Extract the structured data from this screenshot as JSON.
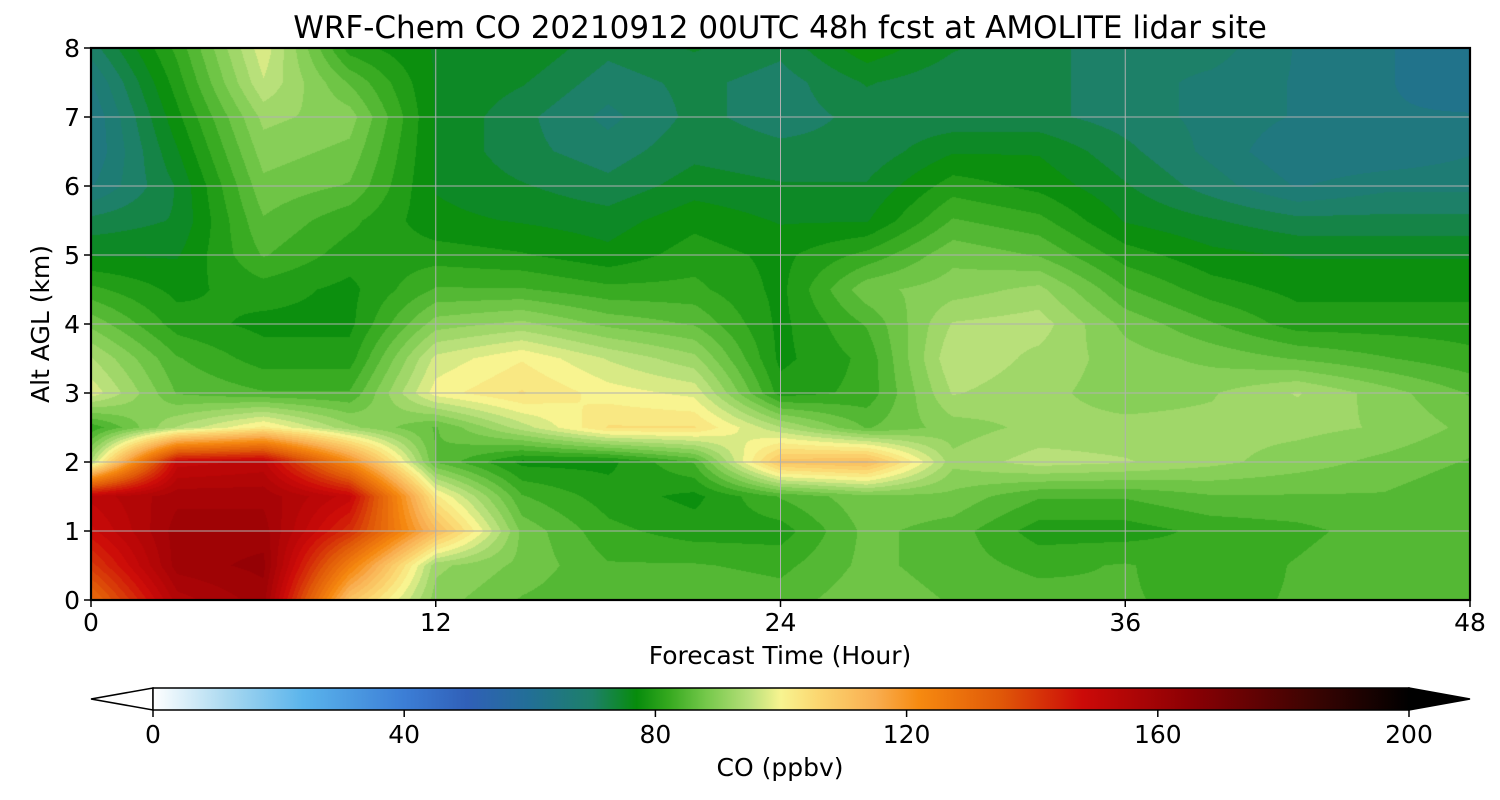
{
  "chart_data": {
    "type": "heatmap",
    "title": "WRF-Chem CO  20210912 00UTC 48h fcst at AMOLITE lidar site",
    "xlabel": "Forecast Time (Hour)",
    "ylabel": "Alt AGL (km)",
    "xlim": [
      0,
      48
    ],
    "ylim": [
      0,
      8
    ],
    "xticks": [
      0,
      12,
      24,
      36,
      48
    ],
    "yticks": [
      0,
      1,
      2,
      3,
      4,
      5,
      6,
      7,
      8
    ],
    "grid": true,
    "colorbar": {
      "label": "CO  (ppbv)",
      "range": [
        0,
        200
      ],
      "ticks": [
        0,
        40,
        80,
        120,
        160,
        200
      ],
      "extend": "both",
      "orientation": "horizontal",
      "stops": [
        {
          "value": 0,
          "color": "#ffffff"
        },
        {
          "value": 12,
          "color": "#a8d8f0"
        },
        {
          "value": 24,
          "color": "#5ab4ec"
        },
        {
          "value": 40,
          "color": "#3c7ed6"
        },
        {
          "value": 50,
          "color": "#3060b8"
        },
        {
          "value": 60,
          "color": "#226f96"
        },
        {
          "value": 70,
          "color": "#1d8068"
        },
        {
          "value": 77,
          "color": "#078c0c"
        },
        {
          "value": 82,
          "color": "#34a81e"
        },
        {
          "value": 88,
          "color": "#74c84a"
        },
        {
          "value": 95,
          "color": "#b8e07a"
        },
        {
          "value": 100,
          "color": "#f8f490"
        },
        {
          "value": 106,
          "color": "#fbd670"
        },
        {
          "value": 115,
          "color": "#f9ae50"
        },
        {
          "value": 122,
          "color": "#f68a10"
        },
        {
          "value": 135,
          "color": "#e05808"
        },
        {
          "value": 148,
          "color": "#cc0a08"
        },
        {
          "value": 165,
          "color": "#8c0004"
        },
        {
          "value": 185,
          "color": "#3a0402"
        },
        {
          "value": 200,
          "color": "#000000"
        }
      ]
    },
    "field_note_units": "ppbv",
    "time": [
      0,
      3,
      6,
      9,
      12,
      15,
      18,
      21,
      24,
      27,
      30,
      33,
      36,
      39,
      42,
      45,
      48
    ],
    "altitude": [
      0,
      0.5,
      1,
      1.5,
      2,
      2.5,
      3,
      3.5,
      4,
      4.5,
      5,
      5.5,
      6,
      6.5,
      7,
      7.5,
      8
    ],
    "values": [
      [
        130,
        155,
        160,
        110,
        90,
        86,
        84,
        86,
        85,
        88,
        86,
        85,
        84,
        83,
        84,
        86,
        84
      ],
      [
        140,
        160,
        162,
        125,
        92,
        88,
        84,
        84,
        83,
        87,
        85,
        83,
        84,
        82,
        84,
        86,
        84
      ],
      [
        148,
        160,
        160,
        142,
        112,
        88,
        82,
        80,
        80,
        87,
        85,
        80,
        80,
        82,
        83,
        85,
        84
      ],
      [
        152,
        158,
        158,
        150,
        102,
        84,
        80,
        78,
        84,
        88,
        88,
        84,
        84,
        86,
        86,
        86,
        84
      ],
      [
        94,
        150,
        152,
        122,
        86,
        78,
        78,
        84,
        110,
        112,
        92,
        95,
        94,
        92,
        90,
        88,
        86
      ],
      [
        82,
        94,
        102,
        92,
        86,
        95,
        104,
        104,
        94,
        86,
        90,
        92,
        92,
        92,
        92,
        91,
        88
      ],
      [
        98,
        86,
        84,
        84,
        100,
        104,
        100,
        98,
        80,
        82,
        94,
        92,
        90,
        91,
        94,
        90,
        86
      ],
      [
        94,
        84,
        80,
        80,
        97,
        101,
        96,
        92,
        78,
        82,
        96,
        93,
        90,
        88,
        86,
        84,
        82
      ],
      [
        88,
        80,
        78,
        78,
        90,
        92,
        88,
        86,
        78,
        84,
        94,
        95,
        88,
        84,
        80,
        80,
        80
      ],
      [
        82,
        78,
        80,
        78,
        84,
        84,
        82,
        82,
        78,
        88,
        90,
        92,
        84,
        80,
        78,
        78,
        78
      ],
      [
        76,
        76,
        84,
        80,
        80,
        79,
        77,
        80,
        78,
        82,
        88,
        86,
        80,
        77,
        76,
        76,
        76
      ],
      [
        72,
        74,
        86,
        82,
        77,
        76,
        75,
        78,
        76,
        76,
        84,
        82,
        76,
        74,
        72,
        72,
        72
      ],
      [
        66,
        74,
        88,
        86,
        76,
        74,
        72,
        75,
        74,
        74,
        80,
        78,
        74,
        70,
        66,
        68,
        68
      ],
      [
        64,
        76,
        90,
        88,
        76,
        72,
        70,
        73,
        72,
        72,
        76,
        76,
        72,
        68,
        64,
        64,
        66
      ],
      [
        64,
        78,
        92,
        90,
        76,
        72,
        68,
        72,
        70,
        72,
        72,
        72,
        70,
        68,
        66,
        64,
        64
      ],
      [
        66,
        80,
        96,
        86,
        76,
        74,
        70,
        72,
        70,
        74,
        72,
        72,
        70,
        68,
        66,
        64,
        62
      ],
      [
        70,
        82,
        98,
        80,
        76,
        76,
        72,
        74,
        72,
        78,
        74,
        72,
        70,
        70,
        66,
        64,
        62
      ]
    ]
  }
}
